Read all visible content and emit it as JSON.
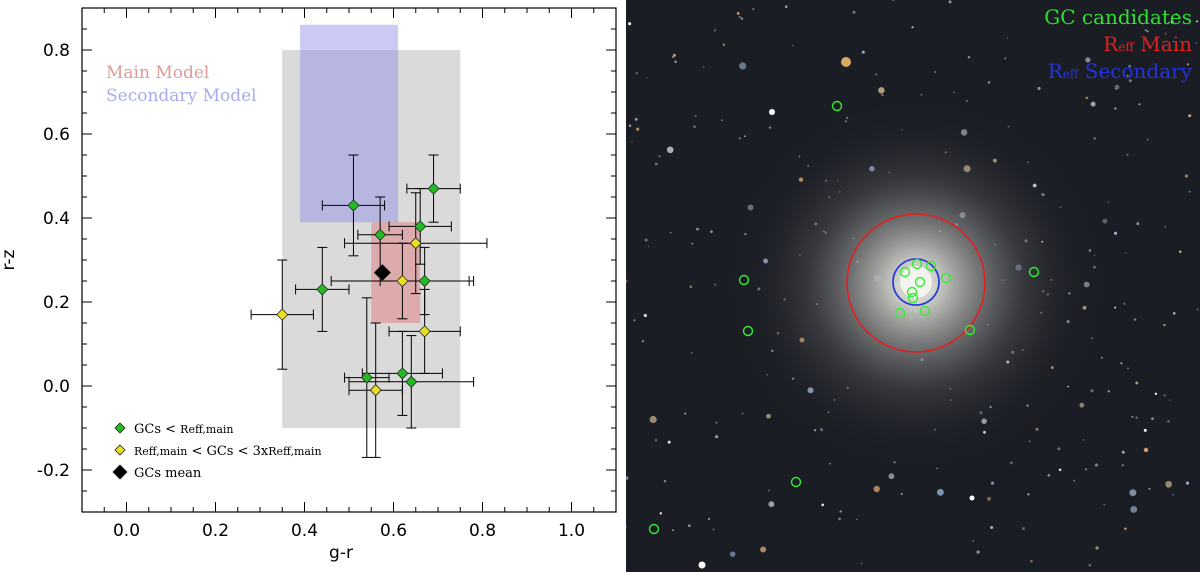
{
  "chart_data": {
    "type": "scatter",
    "xlabel": "g-r",
    "ylabel": "r-z",
    "xlim": [
      -0.1,
      1.1
    ],
    "ylim": [
      -0.3,
      0.9
    ],
    "xticks": [
      "0.0",
      "0.2",
      "0.4",
      "0.6",
      "0.8",
      "1.0"
    ],
    "yticks": [
      "-0.2",
      "0.0",
      "0.2",
      "0.4",
      "0.6",
      "0.8"
    ],
    "regions": [
      {
        "name": "grey-region",
        "x": [
          0.35,
          0.75
        ],
        "y": [
          -0.1,
          0.8
        ],
        "color": "#d3d3d3"
      },
      {
        "name": "secondary-model-region",
        "label": "Secondary Model",
        "x": [
          0.39,
          0.61
        ],
        "y": [
          0.39,
          0.86
        ],
        "color": "#8a8ae6"
      },
      {
        "name": "main-model-region",
        "label": "Main Model",
        "x": [
          0.55,
          0.66
        ],
        "y": [
          0.15,
          0.39
        ],
        "color": "#e07070"
      }
    ],
    "series": [
      {
        "name": "GCs < Reff,main",
        "color": "#22bb22",
        "points": [
          {
            "x": 0.51,
            "y": 0.43,
            "xerr": 0.07,
            "yerr": 0.12
          },
          {
            "x": 0.57,
            "y": 0.36,
            "xerr": 0.05,
            "yerr": 0.09
          },
          {
            "x": 0.69,
            "y": 0.47,
            "xerr": 0.06,
            "yerr": 0.08
          },
          {
            "x": 0.66,
            "y": 0.38,
            "xerr": 0.07,
            "yerr": 0.09
          },
          {
            "x": 0.44,
            "y": 0.23,
            "xerr": 0.06,
            "yerr": 0.1
          },
          {
            "x": 0.67,
            "y": 0.25,
            "xerr": 0.1,
            "yerr": 0.08
          },
          {
            "x": 0.54,
            "y": 0.02,
            "xerr": 0.05,
            "yerr": 0.19
          },
          {
            "x": 0.62,
            "y": 0.03,
            "xerr": 0.09,
            "yerr": 0.1
          },
          {
            "x": 0.64,
            "y": 0.01,
            "xerr": 0.14,
            "yerr": 0.11
          }
        ]
      },
      {
        "name": "Reff,main < GCs < 3xReff,main",
        "color": "#e8e020",
        "points": [
          {
            "x": 0.35,
            "y": 0.17,
            "xerr": 0.07,
            "yerr": 0.13
          },
          {
            "x": 0.65,
            "y": 0.34,
            "xerr": 0.16,
            "yerr": 0.12
          },
          {
            "x": 0.62,
            "y": 0.25,
            "xerr": 0.16,
            "yerr": 0.09
          },
          {
            "x": 0.67,
            "y": 0.13,
            "xerr": 0.08,
            "yerr": 0.1
          },
          {
            "x": 0.56,
            "y": -0.01,
            "xerr": 0.06,
            "yerr": 0.16
          }
        ]
      },
      {
        "name": "GCs mean",
        "color": "#000000",
        "points": [
          {
            "x": 0.575,
            "y": 0.27,
            "xerr": 0.0,
            "yerr": 0.0
          }
        ]
      }
    ],
    "model_labels": {
      "main": "Main Model",
      "secondary": "Secondary Model"
    },
    "legend": {
      "placement": "bottom-left",
      "entries": [
        {
          "name": "GCs < ",
          "sub": "Reff,main",
          "color": "#22bb22"
        },
        {
          "name": "Reff,main",
          "mid": " < GCs < 3x",
          "tail": "Reff,main",
          "color": "#e8e020"
        },
        {
          "name": "GCs mean",
          "color": "#000000"
        }
      ]
    },
    "grid": false
  },
  "image": {
    "legend": [
      {
        "text": "GC candidates",
        "color": "#33dd33"
      },
      {
        "text": "R",
        "sub": "eff",
        "rest": " Main",
        "color": "#dd2222"
      },
      {
        "text": "R",
        "sub": "eff",
        "rest": " Secondary",
        "color": "#2233dd"
      }
    ],
    "overlay_colors": {
      "gc": "#33ee33",
      "main": "#e02020",
      "secondary": "#2233dd"
    }
  }
}
